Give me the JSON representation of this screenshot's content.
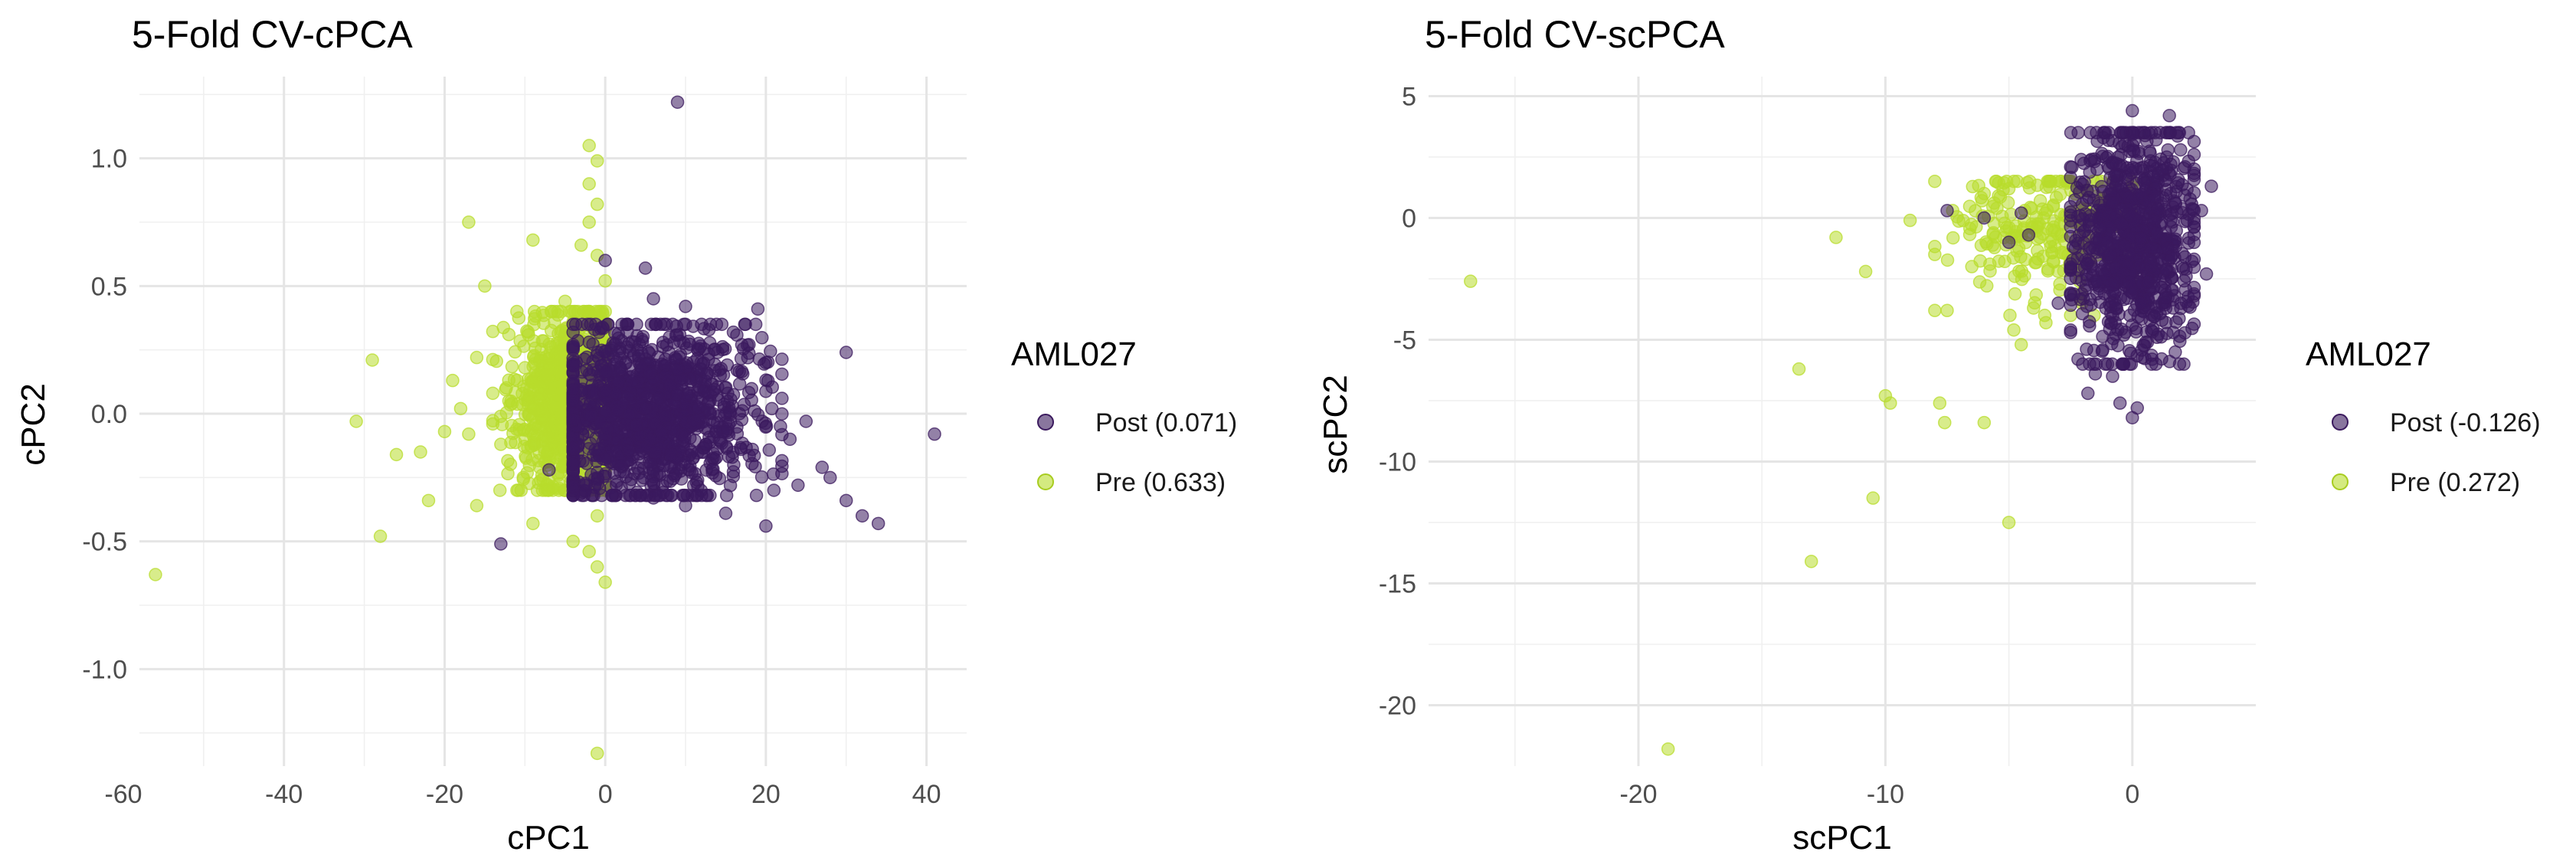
{
  "chart_data": [
    {
      "type": "scatter",
      "title": "5-Fold CV-cPCA",
      "xlabel": "cPC1",
      "ylabel": "cPC2",
      "xlim": [
        -58,
        45
      ],
      "ylim": [
        -1.38,
        1.32
      ],
      "xticks": [
        -60,
        -40,
        -20,
        0,
        20,
        40
      ],
      "xtick_labels": [
        "-60",
        "-40",
        "-20",
        "0",
        "20",
        "40"
      ],
      "yticks": [
        -1.0,
        -0.5,
        0.0,
        0.5,
        1.0
      ],
      "ytick_labels": [
        "-1.0",
        "-0.5",
        "0.0",
        "0.5",
        "1.0"
      ],
      "grid": true,
      "legend": {
        "title": "AML027",
        "position": "right",
        "entries": [
          {
            "label": "Post (0.071)",
            "color": "#3b1a5e"
          },
          {
            "label": "Pre (0.633)",
            "color": "#b8dc2c"
          }
        ]
      },
      "series": [
        {
          "name": "Pre (0.633)",
          "color": "#b8dc2c",
          "points": [
            [
              -56,
              -0.63
            ],
            [
              -31,
              -0.03
            ],
            [
              -29,
              0.21
            ],
            [
              -28,
              -0.48
            ],
            [
              -26,
              -0.16
            ],
            [
              -23,
              -0.15
            ],
            [
              -22,
              -0.34
            ],
            [
              -20,
              -0.07
            ],
            [
              -19,
              0.13
            ],
            [
              -18,
              0.02
            ],
            [
              -17,
              0.75
            ],
            [
              -16,
              0.22
            ],
            [
              -16,
              -0.36
            ],
            [
              -15,
              0.5
            ],
            [
              -14,
              0.08
            ],
            [
              -13,
              -0.12
            ],
            [
              -12,
              0.31
            ],
            [
              -11,
              0.4
            ],
            [
              -9,
              0.68
            ],
            [
              -9,
              -0.43
            ],
            [
              -8,
              0.16
            ],
            [
              -7,
              -0.26
            ],
            [
              -5,
              0.44
            ],
            [
              -4,
              0.36
            ],
            [
              -4,
              -0.5
            ],
            [
              -3,
              0.66
            ],
            [
              -2,
              -0.54
            ],
            [
              -2,
              1.05
            ],
            [
              -1,
              0.99
            ],
            [
              -1,
              -0.6
            ],
            [
              0,
              -0.66
            ],
            [
              0,
              0.52
            ],
            [
              -1,
              -1.33
            ],
            [
              -3,
              0.27
            ],
            [
              -6,
              0.22
            ],
            [
              -10,
              0.18
            ],
            [
              -12,
              0.05
            ],
            [
              -14,
              -0.04
            ],
            [
              -17,
              -0.08
            ],
            [
              -7,
              -0.18
            ],
            [
              -3,
              -0.3
            ],
            [
              -1,
              -0.4
            ],
            [
              -2,
              0.9
            ],
            [
              -1,
              0.82
            ],
            [
              -2,
              0.75
            ],
            [
              -1,
              0.62
            ]
          ],
          "cloud": {
            "count": 1000,
            "x_range": [
              -14,
              0
            ],
            "y_range": [
              -0.3,
              0.4
            ],
            "cx": -4,
            "cy": 0.05
          }
        },
        {
          "name": "Post (0.071)",
          "color": "#3b1a5e",
          "points": [
            [
              9,
              1.22
            ],
            [
              -13,
              -0.51
            ],
            [
              -7,
              -0.22
            ],
            [
              -4,
              0.16
            ],
            [
              -2,
              0.28
            ],
            [
              0,
              0.6
            ],
            [
              5,
              0.57
            ],
            [
              6,
              0.45
            ],
            [
              10,
              0.42
            ],
            [
              14,
              0.24
            ],
            [
              19,
              0.41
            ],
            [
              20,
              0.2
            ],
            [
              22,
              0.06
            ],
            [
              25,
              -0.03
            ],
            [
              27,
              -0.21
            ],
            [
              28,
              -0.25
            ],
            [
              30,
              0.24
            ],
            [
              30,
              -0.34
            ],
            [
              32,
              -0.4
            ],
            [
              34,
              -0.43
            ],
            [
              41,
              -0.08
            ],
            [
              20,
              -0.44
            ],
            [
              15,
              -0.39
            ],
            [
              10,
              -0.36
            ],
            [
              6,
              -0.33
            ],
            [
              2,
              -0.29
            ],
            [
              12,
              0.35
            ],
            [
              8,
              0.3
            ],
            [
              17,
              0.27
            ],
            [
              23,
              -0.1
            ],
            [
              24,
              -0.28
            ],
            [
              21,
              -0.3
            ],
            [
              16,
              -0.2
            ],
            [
              12,
              -0.15
            ],
            [
              4,
              0.25
            ]
          ],
          "cloud": {
            "count": 1300,
            "x_range": [
              -4,
              22
            ],
            "y_range": [
              -0.32,
              0.35
            ],
            "cx": 5,
            "cy": 0.0
          }
        }
      ]
    },
    {
      "type": "scatter",
      "title": "5-Fold CV-scPCA",
      "xlabel": "scPC1",
      "ylabel": "scPC2",
      "xlim": [
        -28.5,
        5
      ],
      "ylim": [
        -22.5,
        5.8
      ],
      "xticks": [
        -20,
        -10,
        0
      ],
      "xtick_labels": [
        "-20",
        "-10",
        "0"
      ],
      "yticks": [
        -20,
        -15,
        -10,
        -5,
        0,
        5
      ],
      "ytick_labels": [
        "-20",
        "-15",
        "-10",
        "-5",
        "0",
        "5"
      ],
      "grid": true,
      "legend": {
        "title": "AML027",
        "position": "right",
        "entries": [
          {
            "label": "Post (-0.126)",
            "color": "#3b1a5e"
          },
          {
            "label": "Pre (0.272)",
            "color": "#b8dc2c"
          }
        ]
      },
      "series": [
        {
          "name": "Pre (0.272)",
          "color": "#b8dc2c",
          "points": [
            [
              -26.8,
              -2.6
            ],
            [
              -18.8,
              -21.8
            ],
            [
              -13.5,
              -6.2
            ],
            [
              -13,
              -14.1
            ],
            [
              -12,
              -0.8
            ],
            [
              -10.8,
              -2.2
            ],
            [
              -10.5,
              -11.5
            ],
            [
              -10,
              -7.3
            ],
            [
              -9.8,
              -7.6
            ],
            [
              -8,
              -3.8
            ],
            [
              -7.8,
              -7.6
            ],
            [
              -7.6,
              -8.4
            ],
            [
              -6,
              -8.4
            ],
            [
              -5,
              -12.5
            ],
            [
              -4.8,
              -4.6
            ],
            [
              -4.5,
              -5.2
            ],
            [
              -3.5,
              -4.3
            ],
            [
              -2.5,
              -4.0
            ],
            [
              -9,
              -0.1
            ],
            [
              -8,
              -1.5
            ],
            [
              -7.5,
              -3.8
            ],
            [
              -6.5,
              -2.0
            ],
            [
              -6,
              1.0
            ],
            [
              -5,
              1.2
            ],
            [
              -4,
              -3.7
            ]
          ],
          "cloud": {
            "count": 260,
            "x_range": [
              -8,
              0
            ],
            "y_range": [
              -4,
              1.5
            ],
            "cx": -3,
            "cy": -0.3
          }
        },
        {
          "name": "Post (-0.126)",
          "color": "#3b1a5e",
          "points": [
            [
              0,
              4.4
            ],
            [
              1.5,
              4.2
            ],
            [
              3.2,
              1.3
            ],
            [
              3,
              -2.3
            ],
            [
              2.8,
              0.3
            ],
            [
              -2.5,
              -4.7
            ],
            [
              -2.2,
              -5.8
            ],
            [
              -1.8,
              -7.2
            ],
            [
              -1.5,
              -6.4
            ],
            [
              -0.8,
              -6.5
            ],
            [
              -0.5,
              -7.6
            ],
            [
              0,
              -8.2
            ],
            [
              0.2,
              -7.8
            ],
            [
              0.8,
              -5.8
            ],
            [
              1,
              -4.9
            ],
            [
              1.2,
              -4.2
            ],
            [
              -4.5,
              0.2
            ],
            [
              -4.2,
              -0.7
            ],
            [
              -7.5,
              0.3
            ],
            [
              -3,
              -3.5
            ],
            [
              -6,
              0.0
            ],
            [
              -5,
              -1.0
            ]
          ],
          "cloud": {
            "count": 900,
            "x_range": [
              -2.5,
              2.5
            ],
            "y_range": [
              -6,
              3.5
            ],
            "cx": 0,
            "cy": -1.0
          }
        }
      ]
    }
  ]
}
